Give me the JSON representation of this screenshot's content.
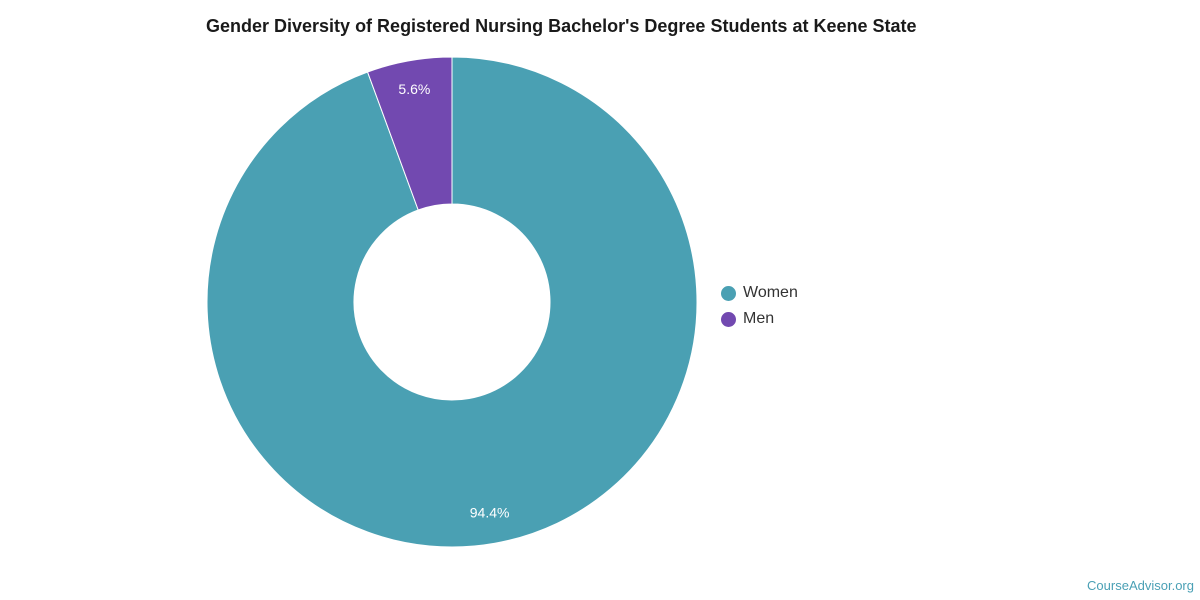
{
  "chart_data": {
    "type": "pie",
    "title": "Gender Diversity of Registered Nursing Bachelor's Degree Students at Keene State",
    "categories": [
      "Women",
      "Men"
    ],
    "values": [
      94.4,
      5.6
    ],
    "labels": [
      "94.4%",
      "5.6%"
    ],
    "colors": [
      "#4aa0b3",
      "#7249b0"
    ],
    "donut": true,
    "legend_position": "right"
  },
  "legend": {
    "items": [
      {
        "label": "Women",
        "color": "#4aa0b3"
      },
      {
        "label": "Men",
        "color": "#7249b0"
      }
    ]
  },
  "footer": {
    "watermark": "CourseAdvisor.org"
  }
}
